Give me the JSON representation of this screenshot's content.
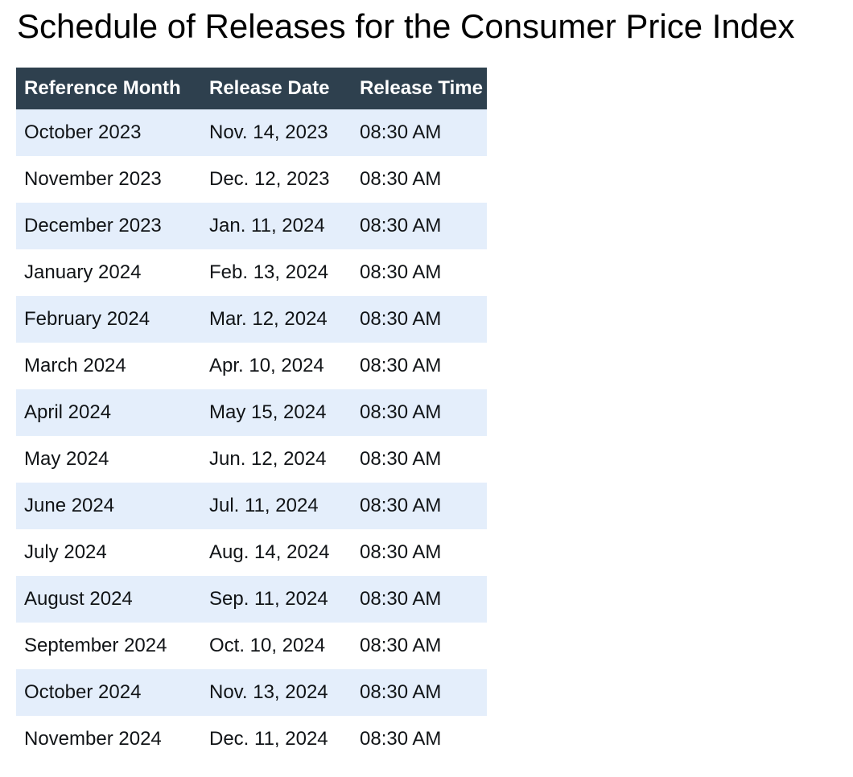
{
  "page_title": "Schedule of Releases for the Consumer Price Index",
  "table": {
    "columns": [
      "Reference Month",
      "Release Date",
      "Release Time"
    ],
    "rows": [
      [
        "October 2023",
        "Nov. 14, 2023",
        "08:30 AM"
      ],
      [
        "November 2023",
        "Dec. 12, 2023",
        "08:30 AM"
      ],
      [
        "December 2023",
        "Jan. 11, 2024",
        "08:30 AM"
      ],
      [
        "January 2024",
        "Feb. 13, 2024",
        "08:30 AM"
      ],
      [
        "February 2024",
        "Mar. 12, 2024",
        "08:30 AM"
      ],
      [
        "March 2024",
        "Apr. 10, 2024",
        "08:30 AM"
      ],
      [
        "April 2024",
        "May 15, 2024",
        "08:30 AM"
      ],
      [
        "May 2024",
        "Jun. 12, 2024",
        "08:30 AM"
      ],
      [
        "June 2024",
        "Jul. 11, 2024",
        "08:30 AM"
      ],
      [
        "July 2024",
        "Aug. 14, 2024",
        "08:30 AM"
      ],
      [
        "August 2024",
        "Sep. 11, 2024",
        "08:30 AM"
      ],
      [
        "September 2024",
        "Oct. 10, 2024",
        "08:30 AM"
      ],
      [
        "October 2024",
        "Nov. 13, 2024",
        "08:30 AM"
      ],
      [
        "November 2024",
        "Dec. 11, 2024",
        "08:30 AM"
      ]
    ]
  },
  "colors": {
    "header_bg": "#2e404e",
    "header_text": "#ffffff",
    "stripe_bg": "#e4eefb",
    "row_bg": "#ffffff",
    "body_text": "#111417",
    "title_text": "#000000",
    "page_bg": "#ffffff"
  }
}
